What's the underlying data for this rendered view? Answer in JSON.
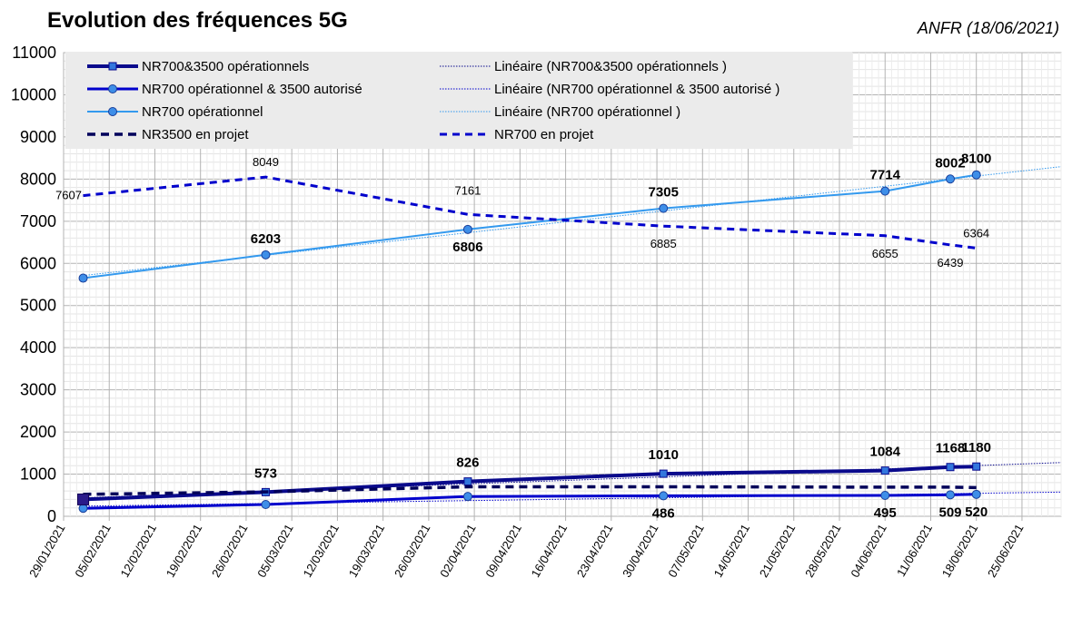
{
  "title": "Evolution des fréquences 5G",
  "source": "ANFR (18/06/2021)",
  "colors": {
    "nr700_3500": "#0a0a8c",
    "nr700_op_3500_aut": "#0000cc",
    "nr700_op": "#3399ee",
    "nr3500_projet": "#00005a",
    "nr700_projet": "#0000cc"
  },
  "chart_data": {
    "type": "line",
    "xlabel": "",
    "ylabel": "",
    "ylim": [
      0,
      11000
    ],
    "yticks": [
      0,
      1000,
      2000,
      3000,
      4000,
      5000,
      6000,
      7000,
      8000,
      9000,
      10000,
      11000
    ],
    "xlim": [
      "2021-01-29",
      "2021-07-01"
    ],
    "xticks": [
      "29/01/2021",
      "05/02/2021",
      "12/02/2021",
      "19/02/2021",
      "26/02/2021",
      "05/03/2021",
      "12/03/2021",
      "19/03/2021",
      "26/03/2021",
      "02/04/2021",
      "09/04/2021",
      "16/04/2021",
      "23/04/2021",
      "30/04/2021",
      "07/05/2021",
      "14/05/2021",
      "21/05/2021",
      "28/05/2021",
      "04/06/2021",
      "11/06/2021",
      "18/06/2021",
      "25/06/2021"
    ],
    "grid": true,
    "legend_position": "top",
    "series": [
      {
        "name": "NR700&3500 opérationnels",
        "x": [
          "2021-02-01",
          "2021-03-01",
          "2021-04-01",
          "2021-05-01",
          "2021-06-04",
          "2021-06-14",
          "2021-06-18"
        ],
        "values": [
          400,
          573,
          826,
          1010,
          1084,
          1168,
          1180
        ],
        "labels": [
          "",
          "573",
          "826",
          "1010",
          "1084",
          "1168",
          "1180"
        ]
      },
      {
        "name": "NR700 opérationnel & 3500 autorisé",
        "x": [
          "2021-02-01",
          "2021-03-01",
          "2021-04-01",
          "2021-05-01",
          "2021-06-04",
          "2021-06-14",
          "2021-06-18"
        ],
        "values": [
          190,
          280,
          470,
          486,
          495,
          509,
          520
        ],
        "labels": [
          "",
          "",
          "",
          "486",
          "495",
          "509",
          "520"
        ]
      },
      {
        "name": "NR700 opérationnel",
        "x": [
          "2021-02-01",
          "2021-03-01",
          "2021-04-01",
          "2021-05-01",
          "2021-06-04",
          "2021-06-14",
          "2021-06-18"
        ],
        "values": [
          5650,
          6203,
          6806,
          7305,
          7714,
          8002,
          8100
        ],
        "labels": [
          "",
          "6203",
          "6806",
          "7305",
          "7714",
          "8002",
          "8100"
        ]
      },
      {
        "name": "NR3500 en projet",
        "x": [
          "2021-02-01",
          "2021-03-01",
          "2021-04-01",
          "2021-05-01",
          "2021-06-04",
          "2021-06-14",
          "2021-06-18"
        ],
        "values": [
          520,
          580,
          700,
          700,
          690,
          690,
          680
        ],
        "labels": [
          "",
          "",
          "",
          "",
          "",
          "",
          ""
        ]
      },
      {
        "name": "NR700 en projet",
        "x": [
          "2021-02-01",
          "2021-03-01",
          "2021-04-01",
          "2021-05-01",
          "2021-06-04",
          "2021-06-14",
          "2021-06-18"
        ],
        "values": [
          7607,
          8049,
          7161,
          6885,
          6655,
          6439,
          6364
        ],
        "labels": [
          "7607",
          "8049",
          "7161",
          "6885",
          "6655",
          "6439",
          "6364"
        ]
      }
    ],
    "trendlines": [
      {
        "name": "Linéaire (NR700&3500 opérationnels     )",
        "of": "NR700&3500 opérationnels"
      },
      {
        "name": "Linéaire (NR700 opérationnel & 3500 autorisé     )",
        "of": "NR700 opérationnel & 3500 autorisé"
      },
      {
        "name": "Linéaire (NR700 opérationnel     )",
        "of": "NR700 opérationnel"
      }
    ]
  }
}
